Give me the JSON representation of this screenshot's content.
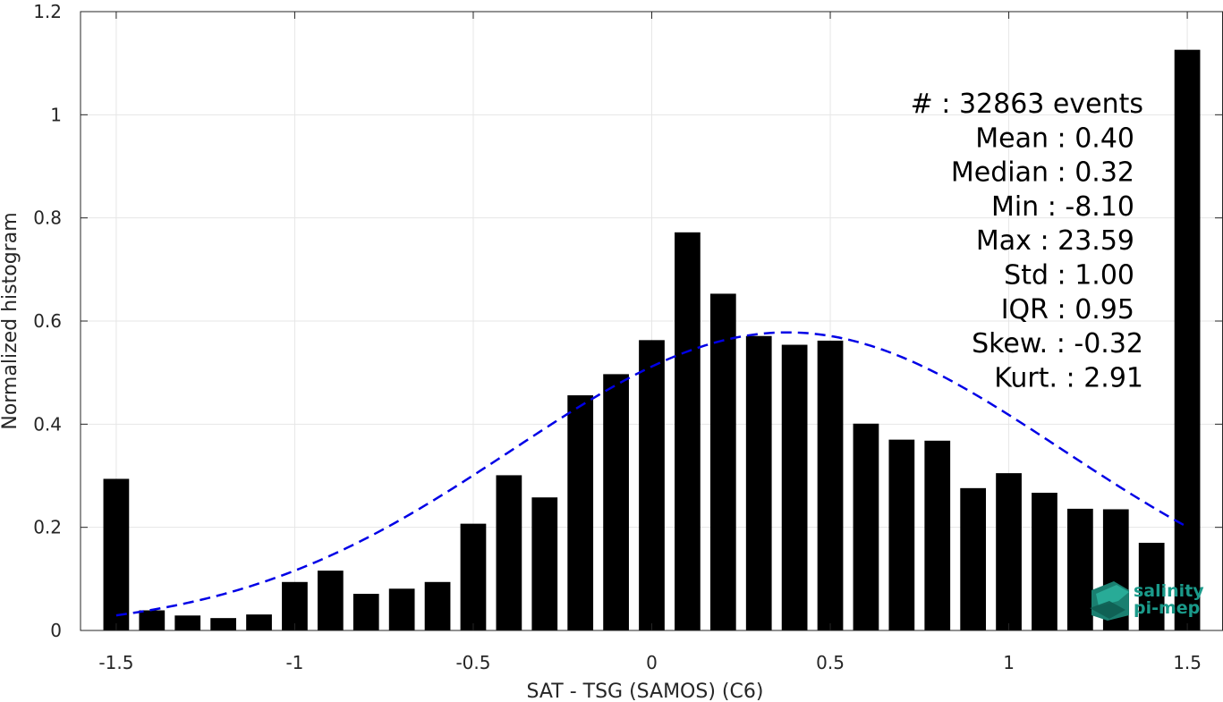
{
  "chart_data": {
    "type": "bar",
    "xlabel": "SAT - TSG (SAMOS) (C6)",
    "ylabel": "Normalized histogram",
    "xlim": [
      -1.6,
      1.6
    ],
    "ylim": [
      0,
      1.2
    ],
    "grid": true,
    "x_ticks": [
      -1.5,
      -1,
      -0.5,
      0,
      0.5,
      1,
      1.5
    ],
    "x_tick_labels": [
      "-1.5",
      "-1",
      "-0.5",
      "0",
      "0.5",
      "1",
      "1.5"
    ],
    "y_ticks": [
      0,
      0.2,
      0.4,
      0.6,
      0.8,
      1,
      1.2
    ],
    "y_tick_labels": [
      "0",
      "0.2",
      "0.4",
      "0.6",
      "0.8",
      "1",
      "1.2"
    ],
    "bar_color": "#000000",
    "bars": {
      "x": [
        -1.5,
        -1.4,
        -1.3,
        -1.2,
        -1.1,
        -1.0,
        -0.9,
        -0.8,
        -0.7,
        -0.6,
        -0.5,
        -0.4,
        -0.3,
        -0.2,
        -0.1,
        0.0,
        0.1,
        0.2,
        0.3,
        0.4,
        0.5,
        0.6,
        0.7,
        0.8,
        0.9,
        1.0,
        1.1,
        1.2,
        1.3,
        1.4,
        1.5
      ],
      "values": [
        0.294,
        0.039,
        0.029,
        0.024,
        0.031,
        0.094,
        0.116,
        0.071,
        0.081,
        0.094,
        0.207,
        0.301,
        0.258,
        0.456,
        0.497,
        0.563,
        0.772,
        0.653,
        0.571,
        0.554,
        0.562,
        0.401,
        0.37,
        0.368,
        0.276,
        0.305,
        0.267,
        0.236,
        0.235,
        0.17,
        1.126
      ]
    },
    "fit_curve": {
      "type": "gaussian",
      "style": "dashed",
      "color": "#0000e6",
      "x_range": [
        -1.5,
        1.5
      ],
      "mean": 0.38,
      "peak": 0.578,
      "sigma": 0.77
    },
    "stats": [
      {
        "label": "#  : 32863 events"
      },
      {
        "label": "Mean : 0.40"
      },
      {
        "label": "Median : 0.32"
      },
      {
        "label": "Min : -8.10"
      },
      {
        "label": "Max : 23.59"
      },
      {
        "label": "Std : 1.00"
      },
      {
        "label": "IQR : 0.95"
      },
      {
        "label": "Skew. : -0.32"
      },
      {
        "label": "Kurt. : 2.91"
      }
    ]
  },
  "logo": {
    "line1": "salinity",
    "line2": "pi-mep",
    "color": "#1a9a8a"
  }
}
